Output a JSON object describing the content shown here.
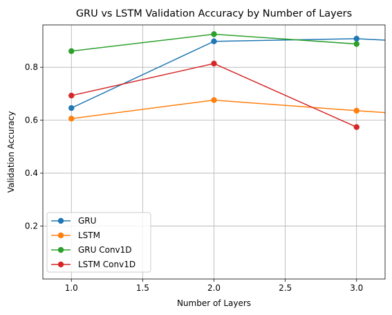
{
  "chart_data": {
    "type": "line",
    "title": "GRU vs LSTM Validation Accuracy by Number of Layers",
    "xlabel": "Number of Layers",
    "ylabel": "Validation Accuracy",
    "xlim": [
      0.8,
      3.2
    ],
    "ylim": [
      0.0,
      0.96
    ],
    "xticks": [
      1.0,
      1.5,
      2.0,
      2.5,
      3.0
    ],
    "xtick_labels": [
      "1.0",
      "1.5",
      "2.0",
      "2.5",
      "3.0"
    ],
    "yticks": [
      0.2,
      0.4,
      0.6,
      0.8
    ],
    "ytick_labels": [
      "0.2",
      "0.4",
      "0.6",
      "0.8"
    ],
    "grid": true,
    "legend_position": "lower-left",
    "x": [
      1,
      2,
      3,
      4
    ],
    "series": [
      {
        "name": "GRU",
        "color": "#1f77b4",
        "values": [
          0.646,
          0.898,
          0.908,
          0.88
        ]
      },
      {
        "name": "LSTM",
        "color": "#ff7f0e",
        "values": [
          0.606,
          0.676,
          0.636,
          0.6
        ]
      },
      {
        "name": "GRU Conv1D",
        "color": "#2ca02c",
        "values": [
          0.861,
          0.925,
          0.888,
          null
        ]
      },
      {
        "name": "LSTM Conv1D",
        "color": "#d62728",
        "values": [
          0.693,
          0.814,
          0.574,
          null
        ]
      }
    ]
  }
}
